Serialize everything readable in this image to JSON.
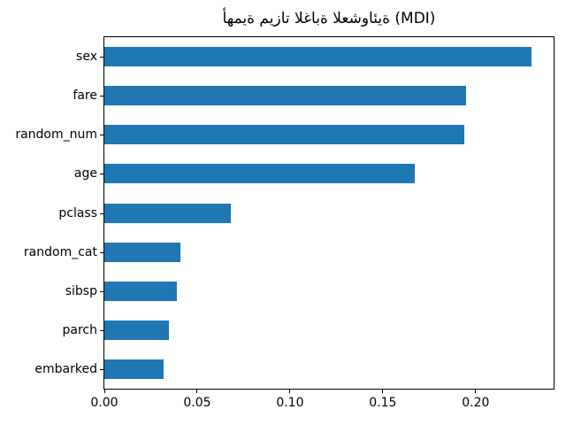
{
  "figure": {
    "background": "#ffffff",
    "text_color": "#000000"
  },
  "chart_data": {
    "type": "bar",
    "orientation": "horizontal",
    "title": "أهمية ميزات الغابة العشوائية (MDI)",
    "categories": [
      "sex",
      "fare",
      "random_num",
      "age",
      "pclass",
      "random_cat",
      "sibsp",
      "parch",
      "embarked"
    ],
    "values": [
      0.23,
      0.195,
      0.194,
      0.167,
      0.068,
      0.041,
      0.039,
      0.035,
      0.032
    ],
    "xlim": [
      0,
      0.242
    ],
    "xticks": [
      0,
      0.05,
      0.1,
      0.15,
      0.2
    ],
    "xtick_labels": [
      "0.00",
      "0.05",
      "0.10",
      "0.15",
      "0.20"
    ],
    "bar_color": "#1f77b4",
    "grid": false,
    "legend": null,
    "xlabel": "",
    "ylabel": ""
  }
}
